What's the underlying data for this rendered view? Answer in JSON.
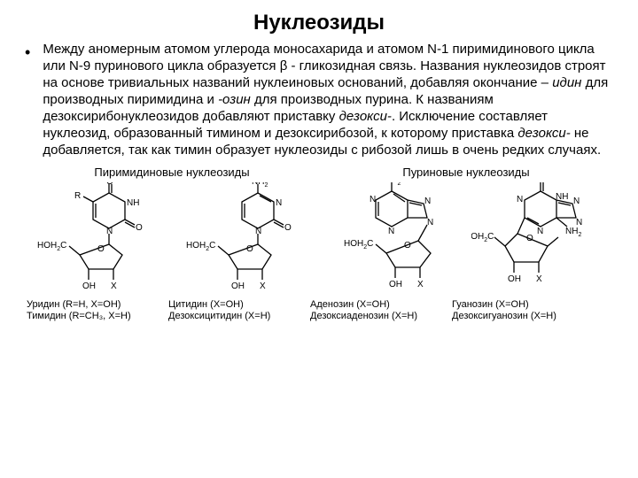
{
  "title": "Нуклеозиды",
  "bullet": "•",
  "paragraph_html": "Между аномерным атомом углерода моносахарида и атомом N-1 пиримидинового цикла или N-9 пуринового цикла образуется β - гликозидная связь. Названия нуклеозидов строят на основе тривиальных названий нуклеиновых оснований, добавляя окончание – <i>идин</i> для производных пиримидина и <i>-озин</i> для производных пурина. К названиям дезоксирибонуклеозидов добавляют приставку <i>дезокси-</i>. Исключение составляет нуклеозид, образованный тимином и дезоксирибозой, к которому приставка <i>дезокси-</i> не добавляется, так как тимин образует нуклеозиды с рибозой лишь в очень редких случаях.",
  "group_left": "Пиримидиновые нуклеозиды",
  "group_right": "Пуриновые нуклеозиды",
  "captions": {
    "c1a": "Уридин (R=H, X=OH)",
    "c1b": "Тимидин (R=CH₃, X=H)",
    "c2a": "Цитидин (X=OH)",
    "c2b": "Дезоксицитидин (X=H)",
    "c3a": "Аденозин (X=OH)",
    "c3b": "Дезоксиаденозин (X=H)",
    "c4a": "Гуанозин (X=OH)",
    "c4b": "Дезоксигуанозин (X=H)"
  },
  "labels": {
    "O": "O",
    "N": "N",
    "NH": "NH",
    "NH2": "NH",
    "NH2_sub": "2",
    "R": "R",
    "HOH2C": "HOH",
    "HOH2C_sub": "2",
    "HOH2C_end": "C",
    "OH": "OH",
    "X": "X"
  },
  "style": {
    "page_bg": "#ffffff",
    "text_color": "#000000",
    "title_fontsize": 24,
    "para_fontsize": 15,
    "group_fontsize": 13,
    "caption_fontsize": 11,
    "svg_label_fontsize": 10,
    "bond_color": "#000000",
    "bond_width": 1.3
  }
}
